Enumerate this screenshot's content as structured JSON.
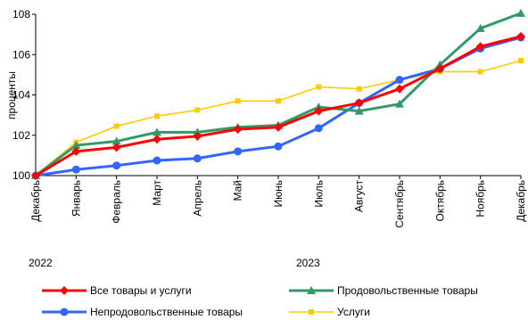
{
  "chart_data": {
    "type": "line",
    "ylabel": "проценты",
    "ylim": [
      100,
      108
    ],
    "yticks": [
      100,
      102,
      104,
      106,
      108
    ],
    "categories": [
      "Декабрь",
      "Январь",
      "Февраль",
      "Март",
      "Апрель",
      "Май",
      "Июнь",
      "Июль",
      "Август",
      "Сентябрь",
      "Октябрь",
      "Ноябрь",
      "Декабрь"
    ],
    "year_labels": [
      "2022",
      "2023"
    ],
    "grid": false,
    "legend_position": "bottom",
    "series": [
      {
        "name": "Все товары и услуги",
        "color": "#ff0000",
        "marker": "diamond",
        "values": [
          100.0,
          101.2,
          101.4,
          101.8,
          101.95,
          102.3,
          102.4,
          103.2,
          103.6,
          104.3,
          105.3,
          106.4,
          106.9
        ]
      },
      {
        "name": "Продовольственные товары",
        "color": "#339966",
        "marker": "triangle",
        "values": [
          100.0,
          101.5,
          101.7,
          102.15,
          102.15,
          102.4,
          102.5,
          103.4,
          103.2,
          103.55,
          105.5,
          107.3,
          108.05
        ]
      },
      {
        "name": "Непродовольственные товары",
        "color": "#3366ff",
        "marker": "circle",
        "values": [
          100.0,
          100.3,
          100.5,
          100.75,
          100.85,
          101.2,
          101.45,
          102.35,
          103.6,
          104.75,
          105.3,
          106.3,
          106.85
        ]
      },
      {
        "name": "Услуги",
        "color": "#ffcc00",
        "marker": "square",
        "values": [
          100.0,
          101.65,
          102.45,
          102.95,
          103.25,
          103.7,
          103.7,
          104.4,
          104.3,
          104.75,
          105.15,
          105.15,
          105.7
        ]
      }
    ]
  }
}
